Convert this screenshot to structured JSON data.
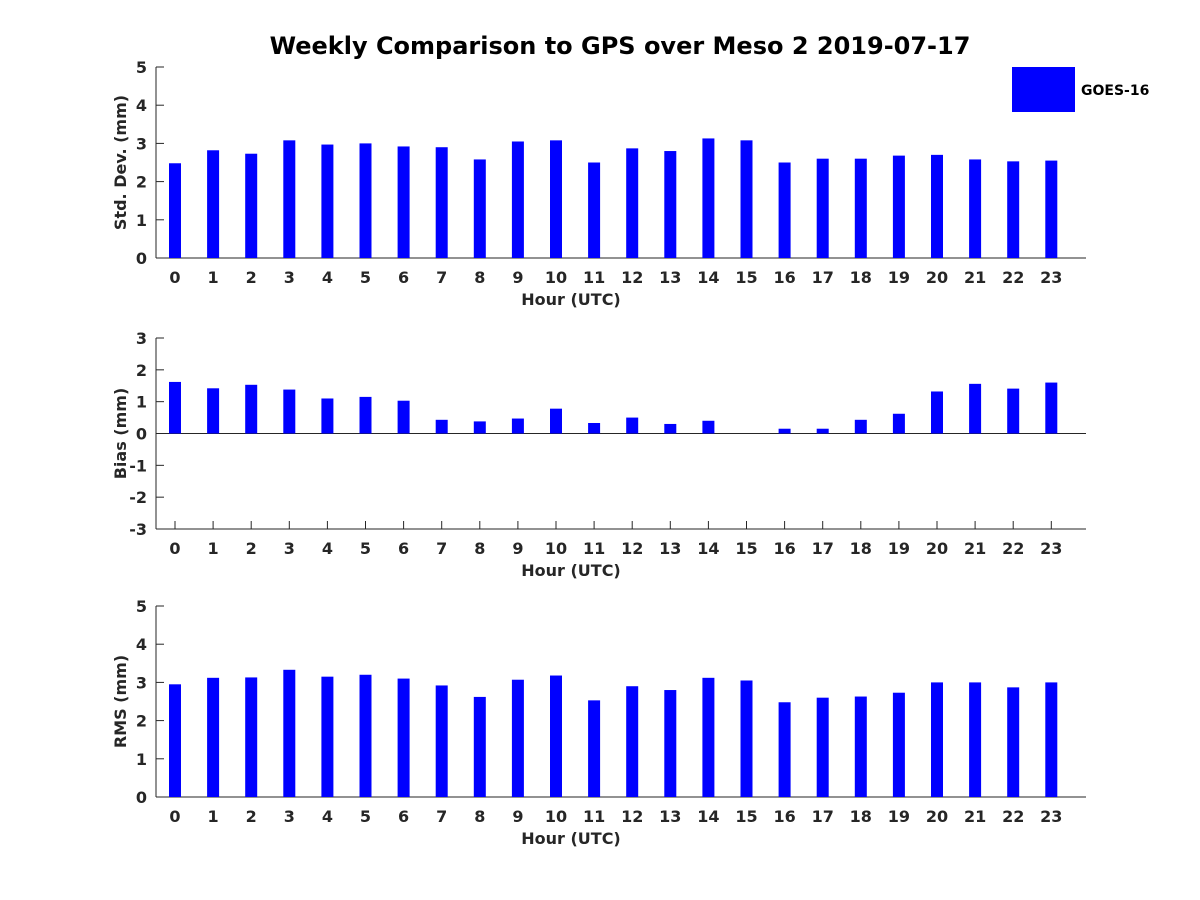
{
  "chart_data": [
    {
      "type": "bar",
      "title": "Weekly Comparison to GPS over Meso 2 2019-07-17",
      "xlabel": "Hour (UTC)",
      "ylabel": "Std. Dev. (mm)",
      "ylim": [
        0,
        5
      ],
      "yticks": [
        0,
        1,
        2,
        3,
        4,
        5
      ],
      "categories": [
        "0",
        "1",
        "2",
        "3",
        "4",
        "5",
        "6",
        "7",
        "8",
        "9",
        "10",
        "11",
        "12",
        "13",
        "14",
        "15",
        "16",
        "17",
        "18",
        "19",
        "20",
        "21",
        "22",
        "23"
      ],
      "series": [
        {
          "name": "GOES-16",
          "color": "#0000ff",
          "values": [
            2.48,
            2.82,
            2.73,
            3.08,
            2.97,
            3.0,
            2.92,
            2.9,
            2.58,
            3.05,
            3.08,
            2.5,
            2.87,
            2.8,
            3.13,
            3.08,
            2.5,
            2.6,
            2.6,
            2.68,
            2.7,
            2.58,
            2.53,
            2.55
          ]
        }
      ],
      "legend": {
        "position": "top-right",
        "entries": [
          "GOES-16"
        ]
      }
    },
    {
      "type": "bar",
      "xlabel": "Hour (UTC)",
      "ylabel": "Bias (mm)",
      "ylim": [
        -3,
        3
      ],
      "yticks": [
        -3,
        -2,
        -1,
        0,
        1,
        2,
        3
      ],
      "categories": [
        "0",
        "1",
        "2",
        "3",
        "4",
        "5",
        "6",
        "7",
        "8",
        "9",
        "10",
        "11",
        "12",
        "13",
        "14",
        "15",
        "16",
        "17",
        "18",
        "19",
        "20",
        "21",
        "22",
        "23"
      ],
      "series": [
        {
          "name": "GOES-16",
          "color": "#0000ff",
          "values": [
            1.62,
            1.42,
            1.53,
            1.38,
            1.1,
            1.15,
            1.03,
            0.43,
            0.38,
            0.47,
            0.78,
            0.33,
            0.5,
            0.3,
            0.4,
            0.0,
            0.15,
            0.15,
            0.43,
            0.62,
            1.32,
            1.56,
            1.41,
            1.6
          ]
        }
      ]
    },
    {
      "type": "bar",
      "xlabel": "Hour (UTC)",
      "ylabel": "RMS (mm)",
      "ylim": [
        0,
        5
      ],
      "yticks": [
        0,
        1,
        2,
        3,
        4,
        5
      ],
      "categories": [
        "0",
        "1",
        "2",
        "3",
        "4",
        "5",
        "6",
        "7",
        "8",
        "9",
        "10",
        "11",
        "12",
        "13",
        "14",
        "15",
        "16",
        "17",
        "18",
        "19",
        "20",
        "21",
        "22",
        "23"
      ],
      "series": [
        {
          "name": "GOES-16",
          "color": "#0000ff",
          "values": [
            2.95,
            3.12,
            3.13,
            3.33,
            3.15,
            3.2,
            3.1,
            2.92,
            2.62,
            3.07,
            3.18,
            2.53,
            2.9,
            2.8,
            3.12,
            3.05,
            2.48,
            2.6,
            2.63,
            2.73,
            3.0,
            3.0,
            2.87,
            3.0
          ]
        }
      ]
    }
  ]
}
